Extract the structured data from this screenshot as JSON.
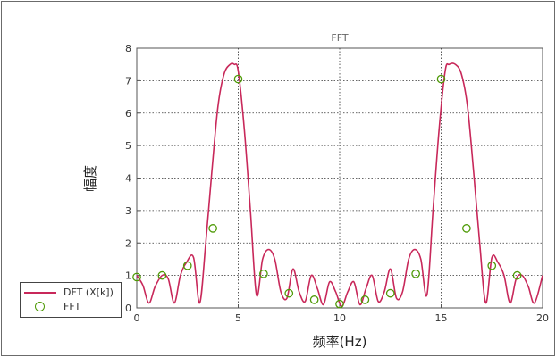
{
  "chart_data": {
    "type": "line",
    "title": "FFT",
    "xlabel": "频率(Hz)",
    "ylabel": "幅度",
    "xlim": [
      0,
      20
    ],
    "ylim": [
      0,
      8
    ],
    "xticks": [
      0,
      5,
      10,
      15,
      20
    ],
    "yticks": [
      0,
      1,
      2,
      3,
      4,
      5,
      6,
      7,
      8
    ],
    "grid": true,
    "legend_position": "bottom-left",
    "series": [
      {
        "name": "DFT (X[k])",
        "kind": "line",
        "color": "#c8285a",
        "x": [
          0,
          0.3,
          0.6,
          0.9,
          1.25,
          1.55,
          1.85,
          2.15,
          2.45,
          2.8,
          3.1,
          3.4,
          3.7,
          4.0,
          4.3,
          4.6,
          4.8,
          5.0,
          5.3,
          5.6,
          5.9,
          6.2,
          6.5,
          6.8,
          7.1,
          7.4,
          7.7,
          8.0,
          8.3,
          8.6,
          8.9,
          9.2,
          9.5,
          9.8,
          10.1,
          10.4,
          10.7,
          11.0,
          11.3,
          11.6,
          11.9,
          12.2,
          12.5,
          12.8,
          13.1,
          13.4,
          13.7,
          14.0,
          14.3,
          14.6,
          14.9,
          15.2,
          15.4,
          15.7,
          16.0,
          16.3,
          16.6,
          16.9,
          17.2,
          17.5,
          17.8,
          18.1,
          18.4,
          18.7,
          19.0,
          19.3,
          19.6,
          20.0
        ],
        "y": [
          1.0,
          0.7,
          0.15,
          0.65,
          1.0,
          0.9,
          0.15,
          1.0,
          1.4,
          1.55,
          0.15,
          2.0,
          4.2,
          6.2,
          7.2,
          7.5,
          7.5,
          7.3,
          5.5,
          3.0,
          0.4,
          1.5,
          1.8,
          1.5,
          0.5,
          0.3,
          1.2,
          0.5,
          0.2,
          1.0,
          0.6,
          0.1,
          0.8,
          0.5,
          0.05,
          0.5,
          0.8,
          0.1,
          0.6,
          1.0,
          0.2,
          0.5,
          1.2,
          0.3,
          0.5,
          1.5,
          1.8,
          1.5,
          0.4,
          3.0,
          5.5,
          7.3,
          7.5,
          7.5,
          7.2,
          6.2,
          4.2,
          2.0,
          0.15,
          1.55,
          1.4,
          1.0,
          0.15,
          0.9,
          1.0,
          0.65,
          0.15,
          1.0
        ]
      },
      {
        "name": "FFT",
        "kind": "scatter",
        "color": "#4e9a06",
        "x": [
          0,
          1.25,
          2.5,
          3.75,
          5,
          6.25,
          7.5,
          8.75,
          10,
          11.25,
          12.5,
          13.75,
          15,
          16.25,
          17.5,
          18.75
        ],
        "y": [
          0.95,
          1.0,
          1.3,
          2.45,
          7.05,
          1.05,
          0.45,
          0.25,
          0.12,
          0.25,
          0.45,
          1.05,
          7.05,
          2.45,
          1.3,
          1.0
        ]
      }
    ]
  }
}
